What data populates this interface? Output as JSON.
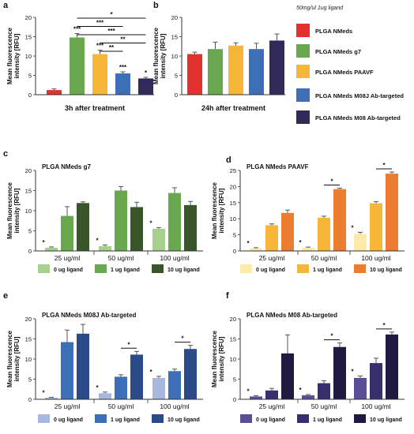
{
  "figure": {
    "dose_note": "50mg/ul  1ug ligand",
    "legend": [
      {
        "label": "PLGA NMeds",
        "color": "#e53030"
      },
      {
        "label": "PLGA NMeds g7",
        "color": "#6aa84f"
      },
      {
        "label": "PLGA NMeds PAAVF",
        "color": "#f6b738"
      },
      {
        "label": "PLGA NMeds M08J Ab-targeted",
        "color": "#3c6fb6"
      },
      {
        "label": "PLGA NMeds M08 Ab-targeted",
        "color": "#2f2a5a"
      }
    ]
  },
  "chart_data": [
    {
      "panel": "a",
      "type": "bar",
      "xlabel": "3h after treatment",
      "ylabel": "Mean fluorescence intensity [RFU]",
      "ylim": [
        0,
        20
      ],
      "yticks": [
        "0",
        "5",
        "10",
        "15",
        "20"
      ],
      "categories": [
        "PLGA NMeds",
        "PLGA NMeds g7",
        "PLGA NMeds PAAVF",
        "PLGA NMeds M08J Ab-targeted",
        "PLGA NMeds M08 Ab-targeted"
      ],
      "colors": [
        "#e53030",
        "#6aa84f",
        "#f6b738",
        "#3c6fb6",
        "#2f2a5a"
      ],
      "values": [
        1.2,
        14.8,
        10.5,
        5.5,
        4.2
      ],
      "errors": [
        0.3,
        1.0,
        1.0,
        0.4,
        0.3
      ],
      "labels": [
        "",
        "***",
        "***",
        "***",
        "*"
      ],
      "brackets": [
        {
          "from": 1,
          "to": 4,
          "label": "*"
        },
        {
          "from": 1,
          "to": 3,
          "label": "***"
        },
        {
          "from": 1,
          "to": 4,
          "label": "***"
        },
        {
          "from": 2,
          "to": 4,
          "label": "**"
        },
        {
          "from": 2,
          "to": 3,
          "label": "**"
        }
      ]
    },
    {
      "panel": "b",
      "type": "bar",
      "xlabel": "24h after treatment",
      "ylabel": "Mean fluorescence intensity [RFU]",
      "ylim": [
        0,
        20
      ],
      "yticks": [
        "0",
        "5",
        "10",
        "15",
        "20"
      ],
      "categories": [
        "PLGA NMeds",
        "PLGA NMeds g7",
        "PLGA NMeds PAAVF",
        "PLGA NMeds M08J Ab-targeted",
        "PLGA NMeds M08 Ab-targeted"
      ],
      "colors": [
        "#e53030",
        "#6aa84f",
        "#f6b738",
        "#3c6fb6",
        "#2f2a5a"
      ],
      "values": [
        10.5,
        11.8,
        12.7,
        11.8,
        14.0
      ],
      "errors": [
        0.5,
        1.8,
        0.7,
        1.5,
        1.7
      ],
      "labels": [
        "",
        "",
        "",
        "",
        ""
      ],
      "brackets": []
    },
    {
      "panel": "c",
      "type": "bar",
      "title": "PLGA NMeds g7",
      "ylabel": "Mean fluorescence intensity [RFU]",
      "ylim": [
        0,
        20
      ],
      "yticks": [
        "0",
        "5",
        "10",
        "15",
        "20"
      ],
      "categories": [
        "25 ug/ml",
        "50 ug/ml",
        "100 ug/ml"
      ],
      "series": [
        {
          "name": "0 ug ligand",
          "color": "#a8d08d",
          "values": [
            0.8,
            1.2,
            5.5
          ],
          "errors": [
            0.2,
            0.3,
            0.3
          ],
          "labels": [
            "*",
            "*",
            "*"
          ]
        },
        {
          "name": "1 ug ligand",
          "color": "#6aa84f",
          "values": [
            8.7,
            15.0,
            14.4
          ],
          "errors": [
            2.3,
            1.0,
            1.3
          ],
          "labels": [
            "",
            "",
            ""
          ]
        },
        {
          "name": "10 ug ligand",
          "color": "#38562a",
          "values": [
            11.9,
            10.9,
            11.4
          ],
          "errors": [
            0.3,
            1.2,
            0.9
          ],
          "labels": [
            "",
            "",
            ""
          ]
        }
      ],
      "brackets": []
    },
    {
      "panel": "d",
      "type": "bar",
      "title": "PLGA NMeds PAAVF",
      "ylabel": "Mean fluorescence intensity [RFU]",
      "ylim": [
        0,
        25
      ],
      "yticks": [
        "0",
        "5",
        "10",
        "15",
        "20",
        "25"
      ],
      "categories": [
        "25 ug/ml",
        "50 ug/ml",
        "100 ug/ml"
      ],
      "series": [
        {
          "name": "0 ug ligand",
          "color": "#fde9a8",
          "values": [
            0.8,
            1.0,
            5.3
          ],
          "errors": [
            0.2,
            0.2,
            0.5
          ],
          "labels": [
            "*",
            "*",
            "*"
          ]
        },
        {
          "name": "1 ug ligand",
          "color": "#f6b738",
          "values": [
            8.0,
            10.3,
            14.8
          ],
          "errors": [
            0.4,
            0.5,
            0.5
          ],
          "labels": [
            "",
            "",
            ""
          ]
        },
        {
          "name": "10 ug ligand",
          "color": "#ec7c30",
          "values": [
            11.8,
            19.2,
            24.0
          ],
          "errors": [
            0.9,
            0.3,
            0.5
          ],
          "labels": [
            "",
            "",
            ""
          ]
        }
      ],
      "brackets": [
        {
          "group": 1,
          "from": 1,
          "to": 2,
          "label": "*"
        },
        {
          "group": 2,
          "from": 1,
          "to": 2,
          "label": "*"
        }
      ]
    },
    {
      "panel": "e",
      "type": "bar",
      "title": "PLGA NMeds M08J Ab-targeted",
      "ylabel": "Mean fluorescence intensity [RFU]",
      "ylim": [
        0,
        20
      ],
      "yticks": [
        "0",
        "5",
        "10",
        "15",
        "20"
      ],
      "categories": [
        "25 ug/ml",
        "50 ug/ml",
        "100 ug/ml"
      ],
      "series": [
        {
          "name": "0 ug ligand",
          "color": "#a7b7de",
          "values": [
            0.4,
            1.5,
            5.3
          ],
          "errors": [
            0.1,
            0.3,
            0.4
          ],
          "labels": [
            "*",
            "*",
            "*"
          ]
        },
        {
          "name": "1 ug ligand",
          "color": "#3c6fb6",
          "values": [
            14.2,
            5.6,
            7.0
          ],
          "errors": [
            3.0,
            0.5,
            0.5
          ],
          "labels": [
            "",
            "",
            ""
          ]
        },
        {
          "name": "10 ug ligand",
          "color": "#2a4a88",
          "values": [
            16.3,
            11.1,
            12.5
          ],
          "errors": [
            2.3,
            0.8,
            0.9
          ],
          "labels": [
            "",
            "",
            ""
          ]
        }
      ],
      "brackets": [
        {
          "group": 1,
          "from": 1,
          "to": 2,
          "label": "*"
        },
        {
          "group": 2,
          "from": 1,
          "to": 2,
          "label": "*"
        }
      ]
    },
    {
      "panel": "f",
      "type": "bar",
      "title": "PLGA NMeds M08 Ab-targeted",
      "ylabel": "Mean fluorescence intensity [RFU]",
      "ylim": [
        0,
        20
      ],
      "yticks": [
        "0",
        "5",
        "10",
        "15",
        "20"
      ],
      "categories": [
        "25 ug/ml",
        "50 ug/ml",
        "100 ug/ml"
      ],
      "series": [
        {
          "name": "0 ug ligand",
          "color": "#5a4f96",
          "values": [
            0.7,
            1.0,
            5.3
          ],
          "errors": [
            0.2,
            0.2,
            0.5
          ],
          "labels": [
            "*",
            "*",
            "*"
          ]
        },
        {
          "name": "1 ug ligand",
          "color": "#37306e",
          "values": [
            2.2,
            4.0,
            9.0
          ],
          "errors": [
            0.5,
            0.6,
            1.2
          ],
          "labels": [
            "",
            "",
            ""
          ]
        },
        {
          "name": "10 ug ligand",
          "color": "#1e1a42",
          "values": [
            11.4,
            13.0,
            16.1
          ],
          "errors": [
            4.6,
            1.0,
            0.6
          ],
          "labels": [
            "",
            "",
            ""
          ]
        }
      ],
      "brackets": [
        {
          "group": 1,
          "from": 1,
          "to": 2,
          "label": "*"
        },
        {
          "group": 2,
          "from": 1,
          "to": 2,
          "label": "*"
        }
      ]
    }
  ]
}
